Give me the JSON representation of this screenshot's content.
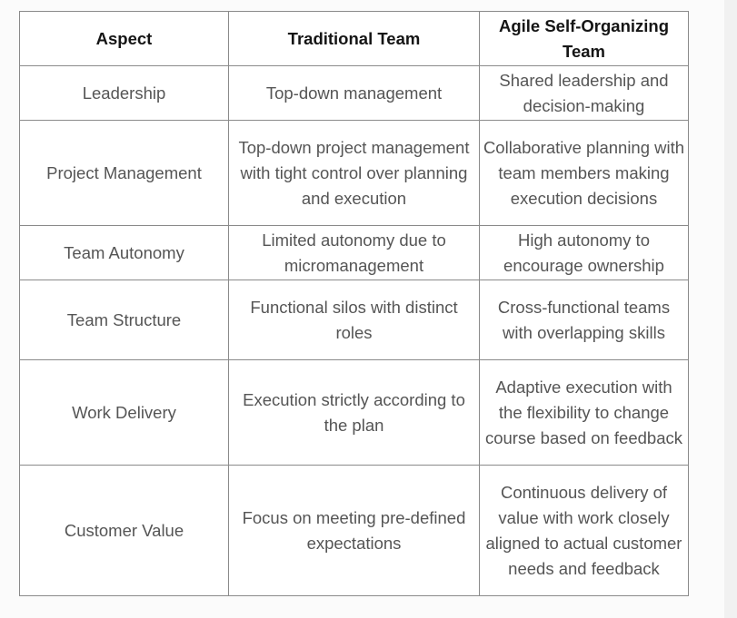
{
  "table": {
    "headers": [
      "Aspect",
      "Traditional Team",
      "Agile Self-Organizing Team"
    ],
    "rows": [
      [
        "Leadership",
        "Top-down management",
        "Shared leadership and decision-making"
      ],
      [
        "Project Management",
        "Top-down project management with tight control over planning and execution",
        "Collaborative planning with team members making execution decisions"
      ],
      [
        "Team Autonomy",
        "Limited autonomy due to micromanagement",
        "High autonomy to encourage ownership"
      ],
      [
        "Team Structure",
        "Functional silos with distinct roles",
        "Cross-functional teams with overlapping skills"
      ],
      [
        "Work Delivery",
        "Execution strictly according to the plan",
        "Adaptive execution with the flexibility to change course based on feedback"
      ],
      [
        "Customer Value",
        "Focus on meeting pre-defined expectations",
        "Continuous delivery of value with work closely aligned to actual customer needs and feedback"
      ]
    ]
  }
}
